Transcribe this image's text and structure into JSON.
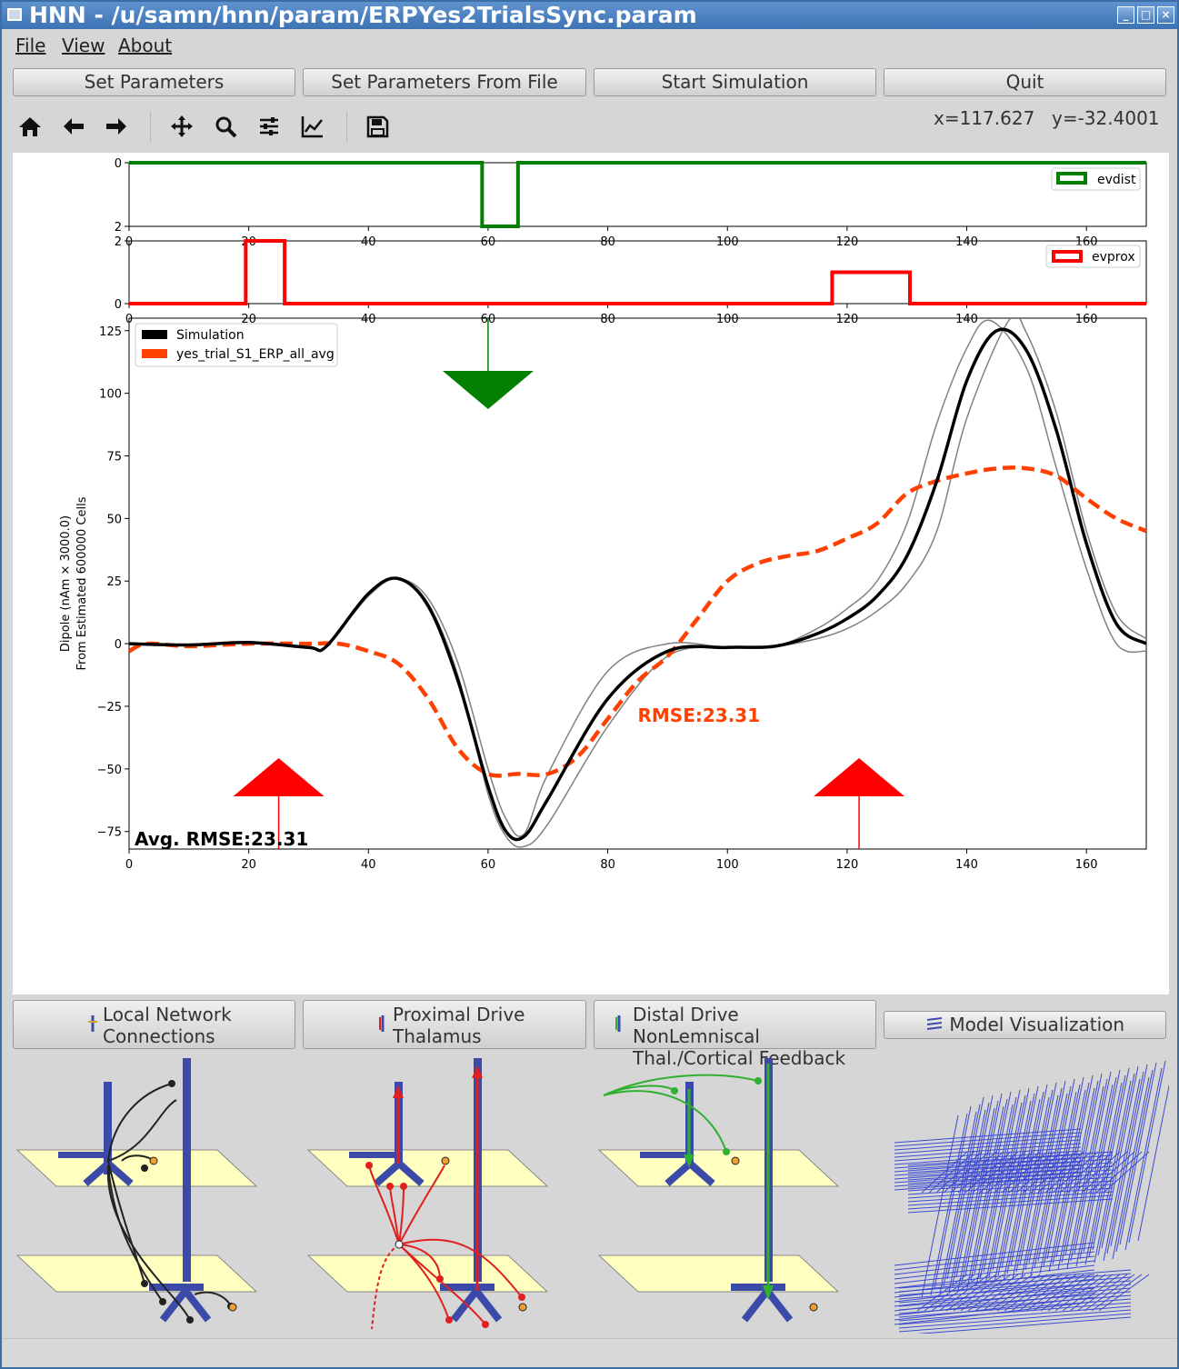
{
  "window": {
    "title": "HNN - /u/samn/hnn/param/ERPYes2TrialsSync.param"
  },
  "menu": {
    "items": [
      {
        "label": "File"
      },
      {
        "label": "View"
      },
      {
        "label": "About"
      }
    ]
  },
  "buttons": {
    "set_parameters": "Set Parameters",
    "set_parameters_file": "Set Parameters From File",
    "start_simulation": "Start Simulation",
    "quit": "Quit"
  },
  "toolbar": {
    "icons": [
      "home-icon",
      "back-arrow-icon",
      "forward-arrow-icon",
      "pan-icon",
      "zoom-icon",
      "subplots-config-icon",
      "axes-edit-icon",
      "save-icon"
    ]
  },
  "coords": {
    "x": "x=117.627",
    "y": "y=-32.4001"
  },
  "bottom_buttons": {
    "local_network": [
      "Local Network",
      "Connections"
    ],
    "proximal_drive": [
      "Proximal Drive",
      "Thalamus"
    ],
    "distal_drive": [
      "Distal Drive NonLemniscal",
      "Thal./Cortical Feedback"
    ],
    "model_viz": "Model Visualization"
  },
  "colors": {
    "evdist": "#007f00",
    "evprox": "#ff0000",
    "simulation": "#000000",
    "data": "#ff4000",
    "trial": "#808080"
  },
  "chart_data": [
    {
      "type": "line",
      "name": "evdist",
      "x": [
        0,
        59,
        59,
        65,
        65,
        170
      ],
      "y": [
        0,
        0,
        2,
        2,
        0,
        0
      ],
      "ylim": [
        2,
        0
      ],
      "yticks": [
        0,
        2
      ],
      "xlim": [
        0,
        170
      ],
      "xticks": [
        0,
        20,
        40,
        60,
        80,
        100,
        120,
        140,
        160
      ],
      "legend": [
        "evdist"
      ]
    },
    {
      "type": "line",
      "name": "evprox",
      "x": [
        0,
        19.5,
        19.5,
        26,
        26,
        117.5,
        117.5,
        130.5,
        130.5,
        170
      ],
      "y": [
        0,
        0,
        2,
        2,
        0,
        0,
        1,
        1,
        0,
        0
      ],
      "ylim": [
        0,
        2
      ],
      "yticks": [
        0,
        2
      ],
      "xlim": [
        0,
        170
      ],
      "xticks": [
        0,
        20,
        40,
        60,
        80,
        100,
        120,
        140,
        160
      ],
      "legend": [
        "evprox"
      ]
    },
    {
      "type": "line",
      "ylabel": [
        "Dipole (nAm × 3000.0)",
        "From Estimated 600000 Cells"
      ],
      "xlim": [
        0,
        170
      ],
      "ylim": [
        -82,
        130
      ],
      "xticks": [
        0,
        20,
        40,
        60,
        80,
        100,
        120,
        140,
        160
      ],
      "yticks": [
        -75,
        -50,
        -25,
        0,
        25,
        50,
        75,
        100,
        125
      ],
      "legend": [
        "Simulation",
        "yes_trial_S1_ERP_all_avg"
      ],
      "series": [
        {
          "name": "Simulation",
          "x": [
            0,
            10,
            20,
            30,
            33,
            40,
            45,
            50,
            55,
            60,
            63,
            66,
            70,
            80,
            90,
            100,
            108,
            115,
            120,
            125,
            130,
            135,
            140,
            145,
            150,
            155,
            160,
            165,
            170
          ],
          "y": [
            0,
            -0.5,
            0.5,
            -1.5,
            -1,
            20,
            26,
            15,
            -15,
            -57,
            -75,
            -77,
            -62,
            -22,
            -3,
            -1.5,
            -1,
            4,
            10,
            19,
            35,
            65,
            105,
            125,
            117,
            85,
            40,
            8,
            0
          ]
        },
        {
          "name": "trial-1",
          "x": [
            0,
            10,
            20,
            30,
            33,
            40,
            45,
            50,
            55,
            60,
            63,
            66,
            70,
            80,
            90,
            100,
            108,
            115,
            120,
            125,
            130,
            135,
            140,
            144,
            150,
            155,
            160,
            165,
            170
          ],
          "y": [
            0,
            -0.5,
            0.5,
            -1.5,
            -1,
            20,
            26,
            18,
            -8,
            -50,
            -70,
            -76,
            -52,
            -11,
            0,
            -1.5,
            -1,
            6,
            14,
            25,
            48,
            88,
            118,
            129,
            110,
            70,
            30,
            0,
            -3
          ]
        },
        {
          "name": "trial-2",
          "x": [
            0,
            10,
            20,
            30,
            33,
            40,
            45,
            50,
            55,
            60,
            63,
            66,
            70,
            80,
            90,
            100,
            108,
            115,
            120,
            125,
            130,
            135,
            140,
            147,
            150,
            155,
            160,
            165,
            170
          ],
          "y": [
            0,
            -0.5,
            0.5,
            -1.5,
            -1,
            19,
            26,
            16,
            -13,
            -60,
            -77,
            -81,
            -72,
            -33,
            -5,
            -1.5,
            -1,
            2,
            6,
            13,
            24,
            45,
            90,
            129,
            124,
            92,
            45,
            12,
            2
          ]
        },
        {
          "name": "yes_trial_S1_ERP_all_avg",
          "x": [
            0,
            3,
            10,
            20,
            30,
            35,
            40,
            45,
            50,
            55,
            60,
            65,
            70,
            75,
            80,
            85,
            90,
            95,
            100,
            105,
            110,
            115,
            120,
            125,
            130,
            135,
            140,
            145,
            150,
            155,
            160,
            165,
            170
          ],
          "y": [
            -3,
            0,
            -1,
            0,
            0,
            0,
            -3,
            -8,
            -22,
            -42,
            -52,
            -52,
            -52,
            -45,
            -30,
            -15,
            -5,
            10,
            25,
            32,
            35,
            37,
            42,
            48,
            60,
            65,
            68,
            70,
            70,
            67,
            58,
            50,
            45
          ]
        }
      ],
      "annotations": {
        "rmse": "RMSE:23.31",
        "avg_rmse": "Avg. RMSE:23.31"
      },
      "drive_arrows": [
        {
          "type": "distal",
          "x": 60
        },
        {
          "type": "proximal",
          "x": 25
        },
        {
          "type": "proximal",
          "x": 122
        }
      ]
    }
  ]
}
